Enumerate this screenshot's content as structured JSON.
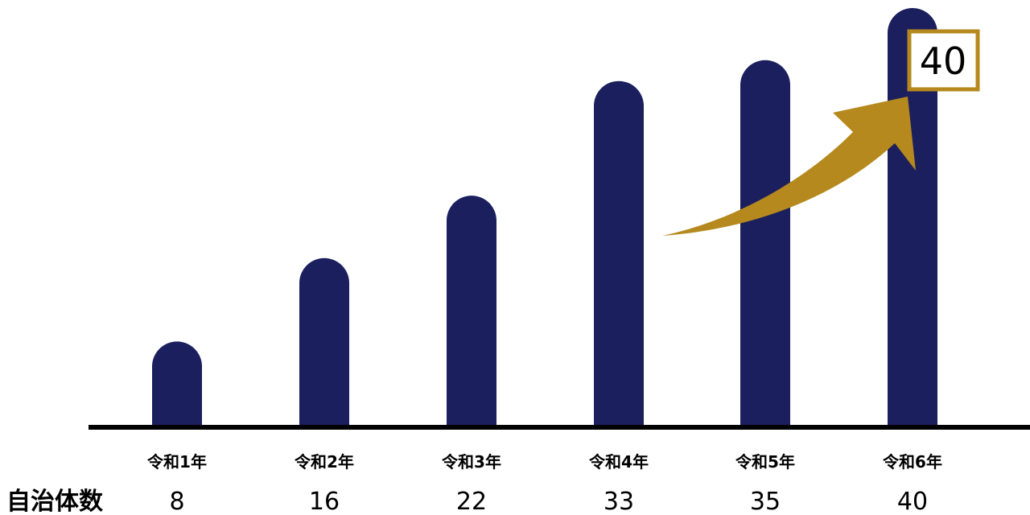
{
  "chart_data": {
    "type": "bar",
    "categories": [
      "令和1年",
      "令和2年",
      "令和3年",
      "令和4年",
      "令和5年",
      "令和6年"
    ],
    "values": [
      8,
      16,
      22,
      33,
      35,
      40
    ],
    "value_labels": [
      "8",
      "16",
      "22",
      "33",
      "35",
      "40"
    ],
    "row_label": "自治体数",
    "highlight": {
      "category": "令和6年",
      "label": "40"
    },
    "ylim": [
      0,
      40
    ],
    "grid": false,
    "legend": "none",
    "colors": {
      "bar": "#1b1f5e",
      "axis": "#000000",
      "accent": "#b5891d",
      "text": "#000000"
    }
  }
}
